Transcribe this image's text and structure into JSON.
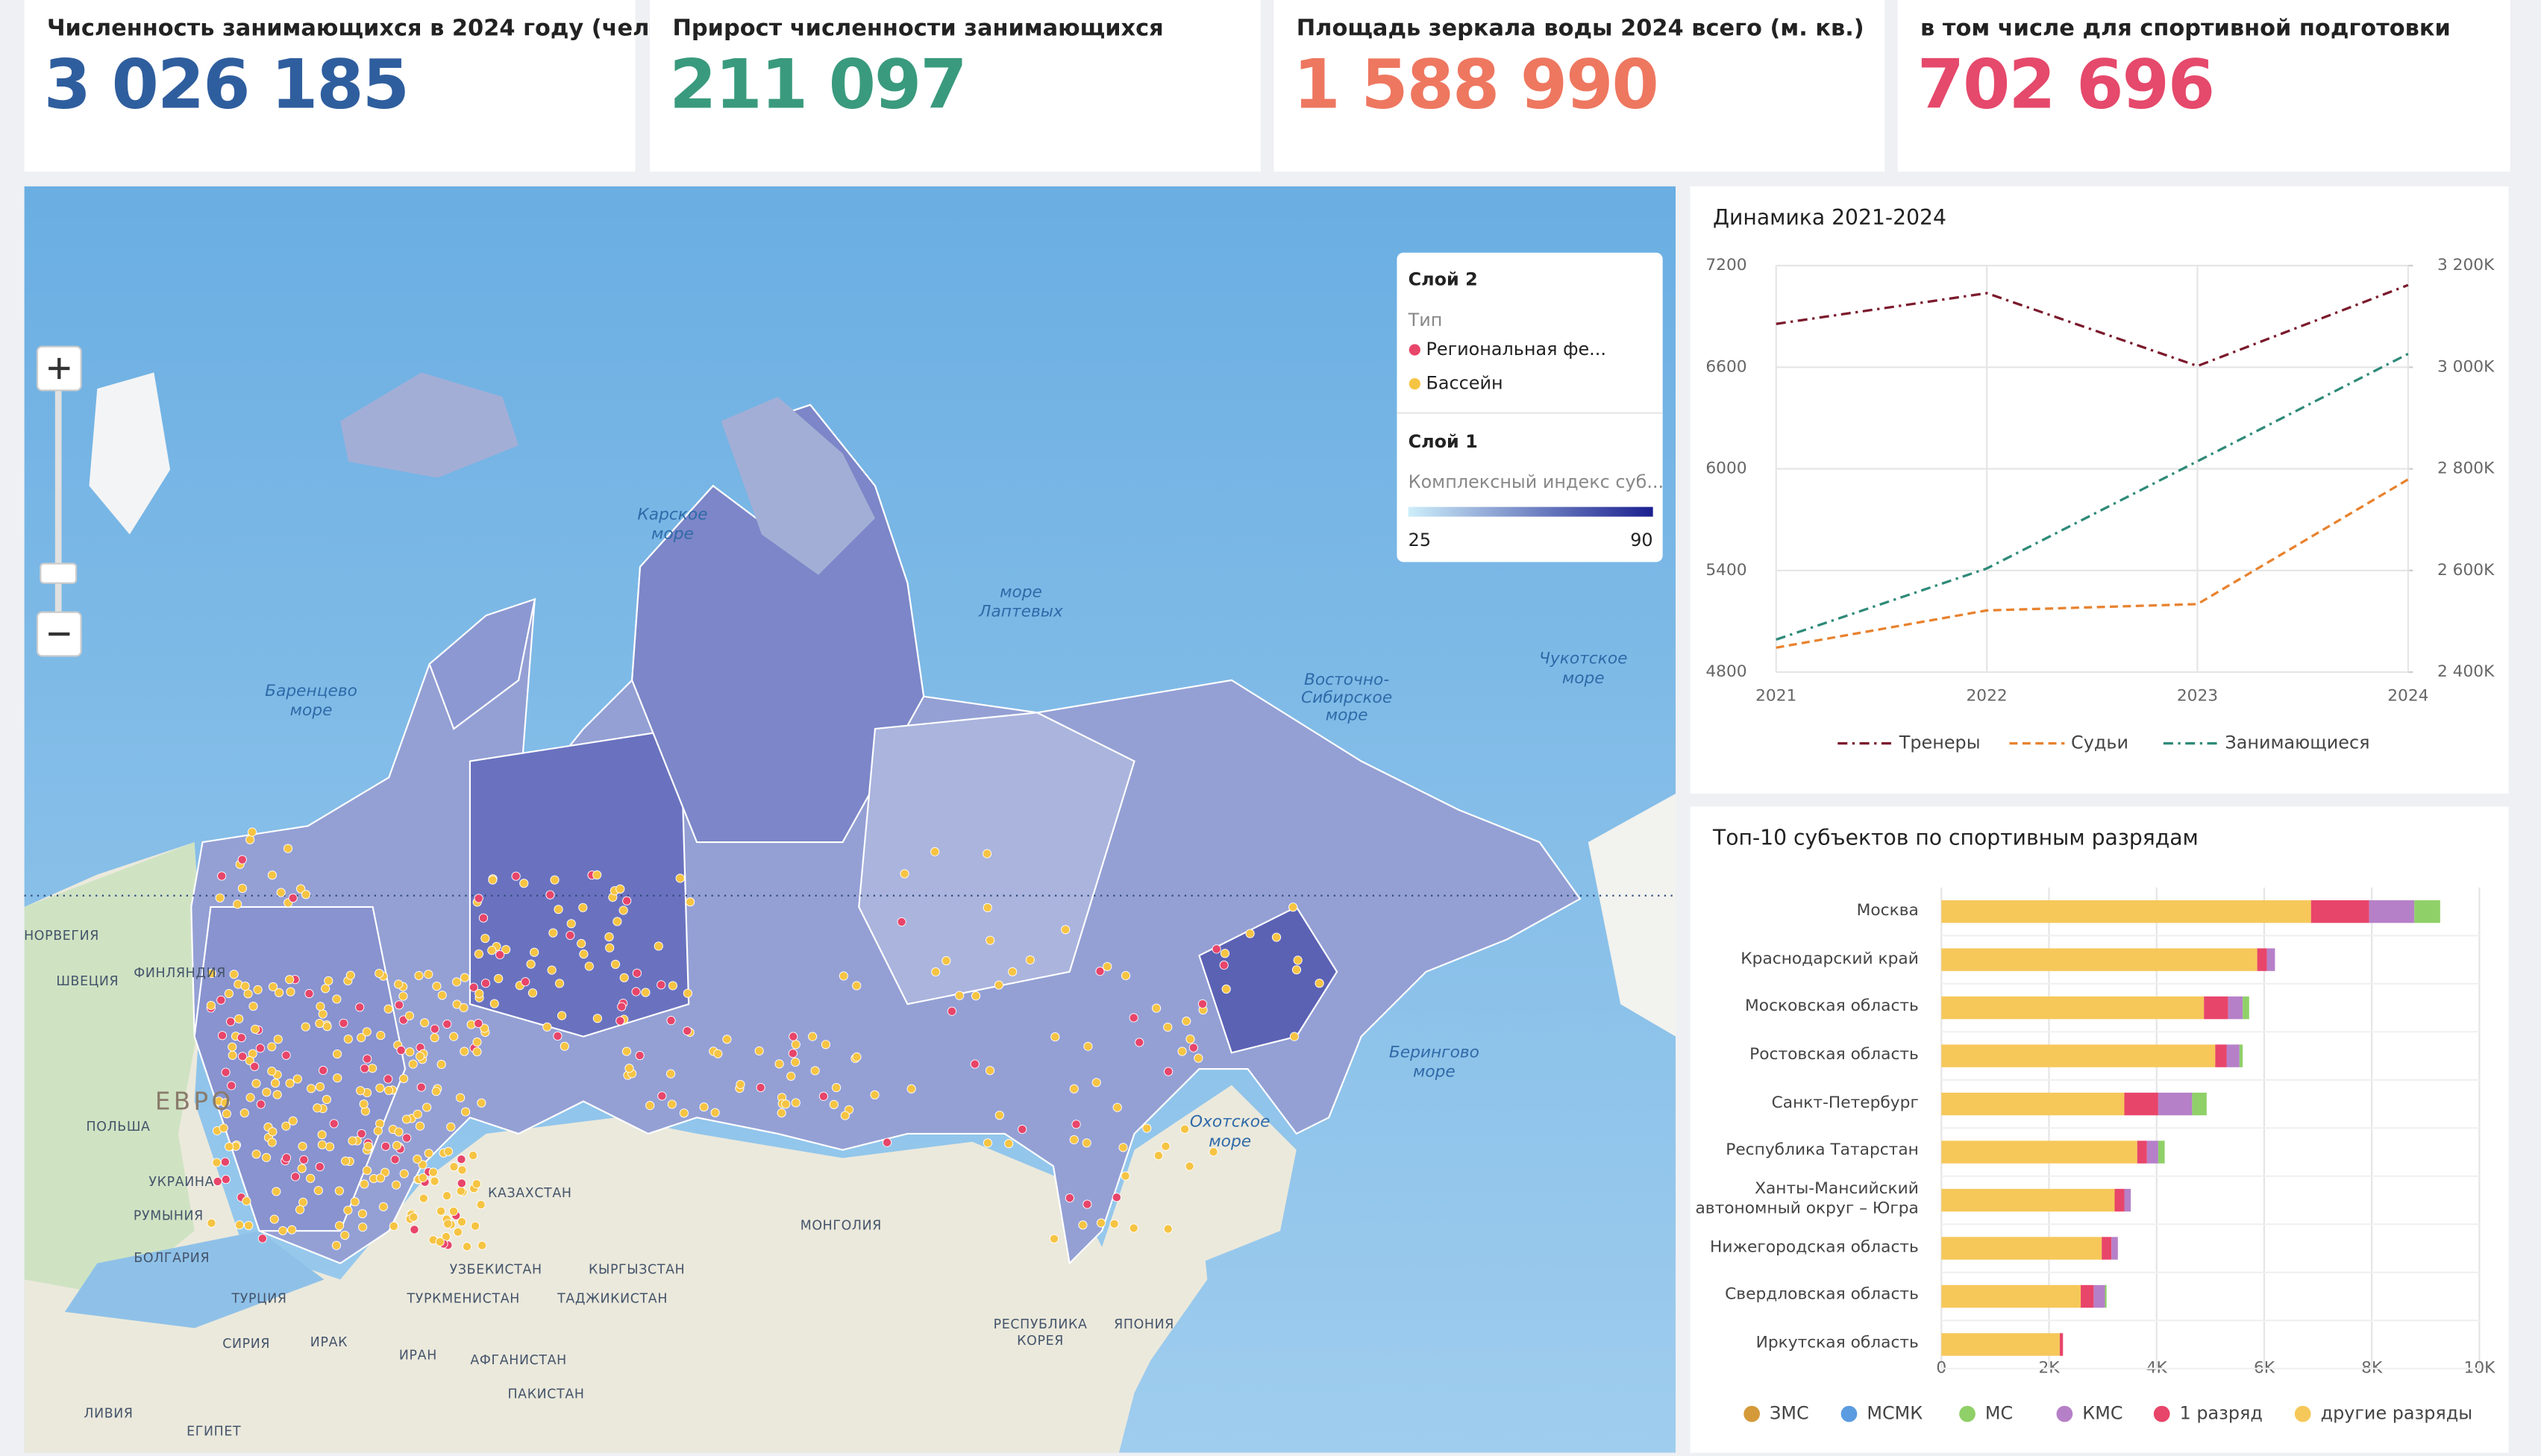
{
  "kpis": [
    {
      "label": "Численность занимающихся в 2024 году (чел.)",
      "value": "3 026 185",
      "color": "#2f5e9e"
    },
    {
      "label": "Прирост численности занимающихся",
      "value": "211 097",
      "color": "#3a9a7d"
    },
    {
      "label": "Площадь зеркала воды 2024 всего (м. кв.)",
      "value": "1 588 990",
      "color": "#ee7760"
    },
    {
      "label": "в том числе для спортивной подготовки",
      "value": "702 696",
      "color": "#e5496b"
    }
  ],
  "map": {
    "legend": {
      "layer2": "Слой 2",
      "type_label": "Тип",
      "items": [
        {
          "name": "Региональная фе...",
          "color": "#e8456a"
        },
        {
          "name": "Бассейн",
          "color": "#f6c443"
        }
      ],
      "layer1": "Слой 1",
      "index_label": "Комплексный индекс суб...",
      "range": [
        25,
        90
      ],
      "colors": [
        "#cdeefa",
        "#1b1f8f"
      ]
    },
    "labels": [
      [
        "Карское",
        "море"
      ],
      [
        "Баренцево",
        "море"
      ],
      [
        "море",
        "Лаптевых"
      ],
      [
        "Восточно-",
        "Сибирское",
        "море"
      ],
      [
        "Чукотское",
        "море"
      ],
      [
        "Берингово",
        "море"
      ],
      [
        "Охотское",
        "море"
      ],
      [
        "КАЗАХСТАН"
      ],
      [
        "МОНГОЛИЯ"
      ],
      [
        "УЗБЕКИСТАН"
      ],
      [
        "КЫРГЫЗСТАН"
      ],
      [
        "ТУРКМЕНИСТАН"
      ],
      [
        "ТАДЖИКИСТАН"
      ],
      [
        "ИРАН"
      ],
      [
        "АФГАНИСТАН"
      ],
      [
        "ПАКИСТАН"
      ],
      [
        "ТУРЦИЯ"
      ],
      [
        "СИРИЯ"
      ],
      [
        "ИРАК"
      ],
      [
        "ЕГИПЕТ"
      ],
      [
        "ЛИВИЯ"
      ],
      [
        "УКРАИНА"
      ],
      [
        "РУМЫНИЯ"
      ],
      [
        "БОЛГАРИЯ"
      ],
      [
        "ПОЛЬША"
      ],
      [
        "ФИНЛЯНДИЯ"
      ],
      [
        "ШВЕЦИЯ"
      ],
      [
        "НОРВЕГИЯ"
      ],
      [
        "ЯПОНИЯ"
      ],
      [
        "РЕСПУБЛИКА",
        "КОРЕЯ"
      ],
      [
        "ЕВРО"
      ]
    ]
  },
  "chart_data": [
    {
      "type": "line",
      "title": "Динамика 2021-2024",
      "categories": [
        "2021",
        "2022",
        "2023",
        "2024"
      ],
      "ylim": [
        4800,
        7200
      ],
      "yticks": [
        4800,
        5400,
        6000,
        6600,
        7200
      ],
      "y2lim": [
        2400000,
        3200000
      ],
      "y2ticks": [
        {
          "value": 2400000,
          "label": "2 400K"
        },
        {
          "value": 2600000,
          "label": "2 600K"
        },
        {
          "value": 2800000,
          "label": "2 800K"
        },
        {
          "value": 3000000,
          "label": "3 000K"
        },
        {
          "value": 3200000,
          "label": "3 200K"
        }
      ],
      "grid": true,
      "series": [
        {
          "name": "Тренеры",
          "color": "#7b1a2c",
          "dash": "dashdot",
          "values": [
            6856,
            7037,
            6607,
            7085
          ]
        },
        {
          "name": "Судьи",
          "color": "#e8822e",
          "dash": "dashed",
          "values": [
            4944,
            5164,
            5202,
            5938
          ]
        },
        {
          "name": "Занимающиеся",
          "color": "#2e8a78",
          "dash": "dashdot",
          "axis": "y2",
          "values": [
            2464000,
            2604000,
            2815088,
            3026185
          ]
        }
      ]
    },
    {
      "type": "bar",
      "orientation": "horizontal",
      "stacked": true,
      "title": "Топ-10 субъектов по спортивным разрядам",
      "categories": [
        "Москва",
        "Краснодарский край",
        "Московская область",
        "Ростовская область",
        "Санкт-Петербург",
        "Республика Татарстан",
        "Ханты-Мансийский автономный округ – Югра",
        "Нижегородская область",
        "Свердловская область",
        "Иркутская область"
      ],
      "xlim": [
        0,
        10000
      ],
      "xticks": [
        0,
        {
          "value": 2000,
          "label": "2K"
        },
        {
          "value": 4000,
          "label": "4K"
        },
        {
          "value": 6000,
          "label": "6K"
        },
        {
          "value": 8000,
          "label": "8K"
        },
        {
          "value": 10000,
          "label": "10K"
        }
      ],
      "grid": true,
      "series": [
        {
          "name": "ЗМС",
          "color": "#d49a3a",
          "values": [
            0,
            0,
            0,
            0,
            0,
            0,
            0,
            0,
            0,
            0
          ]
        },
        {
          "name": "МСМК",
          "color": "#5b9be0",
          "values": [
            0,
            0,
            0,
            0,
            0,
            0,
            0,
            0,
            0,
            0
          ]
        },
        {
          "name": "МС",
          "color": "#8fd068",
          "values": [
            480,
            0,
            120,
            60,
            270,
            120,
            0,
            0,
            30,
            0
          ]
        },
        {
          "name": "КМС",
          "color": "#b680c8",
          "values": [
            840,
            150,
            270,
            240,
            630,
            210,
            120,
            120,
            210,
            0
          ]
        },
        {
          "name": "1 разряд",
          "color": "#e8456a",
          "values": [
            1080,
            180,
            450,
            210,
            630,
            180,
            180,
            180,
            240,
            60
          ]
        },
        {
          "name": "другие разряды",
          "color": "#f6c85a",
          "values": [
            6870,
            5870,
            4880,
            5090,
            3400,
            3640,
            3220,
            2980,
            2590,
            2200
          ]
        }
      ]
    }
  ]
}
